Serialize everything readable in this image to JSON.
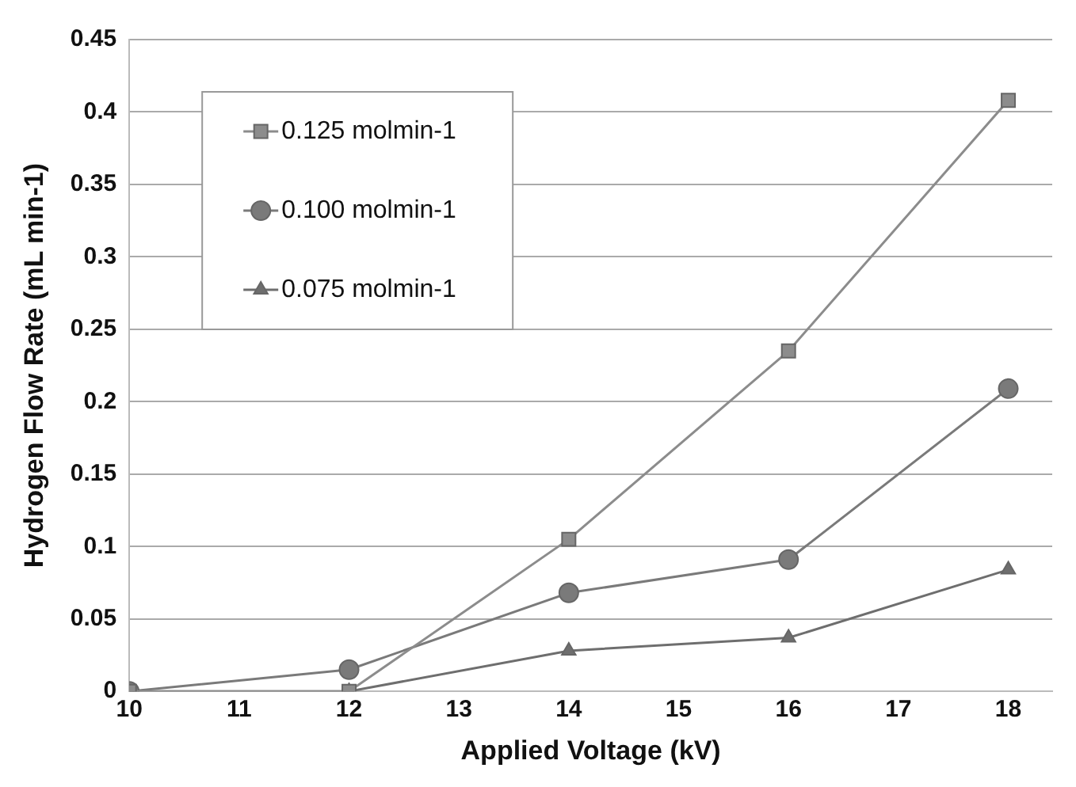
{
  "chart_data": {
    "type": "line",
    "xlabel": "Applied Voltage (kV)",
    "ylabel": "Hydrogen Flow Rate (mL min-1)",
    "x": [
      10,
      12,
      14,
      16,
      18
    ],
    "series": [
      {
        "name": "0.125 molmin-1",
        "color": "#8c8c8c",
        "marker": "square",
        "values": [
          0,
          0,
          0.105,
          0.235,
          0.408
        ]
      },
      {
        "name": "0.100 molmin-1",
        "color": "#7a7a7a",
        "marker": "circle",
        "values": [
          0,
          0.015,
          0.068,
          0.091,
          0.209
        ]
      },
      {
        "name": "0.075 molmin-1",
        "color": "#6e6e6e",
        "marker": "triangle",
        "values": [
          0,
          0,
          0.028,
          0.037,
          0.084
        ]
      }
    ],
    "xlim": [
      10,
      18.4
    ],
    "xticks": [
      10,
      11,
      12,
      13,
      14,
      15,
      16,
      17,
      18
    ],
    "ylim": [
      0,
      0.45
    ],
    "yticks": [
      0,
      0.05,
      0.1,
      0.15,
      0.2,
      0.25,
      0.3,
      0.35,
      0.4,
      0.45
    ],
    "grid": "y",
    "legend": "top left",
    "line_style": "solid"
  }
}
